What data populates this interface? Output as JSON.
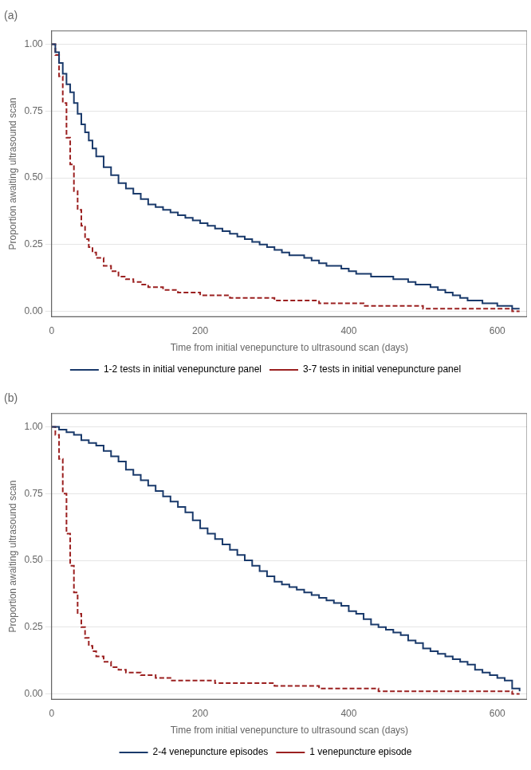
{
  "chart_data": [
    {
      "type": "line",
      "title": "(a)",
      "x_label": "Time from initial venepuncture to ultrasound scan (days)",
      "y_label": "Proportion awaiting ultrasound scan",
      "series": [
        {
          "name": "1-2 tests in initial venepuncture panel",
          "color": "#1a3a6b",
          "line_style": "solid",
          "x": [
            0,
            5,
            10,
            15,
            20,
            25,
            30,
            35,
            40,
            45,
            50,
            55,
            60,
            70,
            80,
            90,
            100,
            110,
            120,
            130,
            140,
            150,
            160,
            170,
            180,
            190,
            200,
            210,
            220,
            230,
            240,
            250,
            260,
            270,
            280,
            290,
            300,
            310,
            320,
            330,
            340,
            350,
            360,
            370,
            380,
            390,
            400,
            410,
            420,
            430,
            440,
            450,
            460,
            470,
            480,
            490,
            500,
            510,
            520,
            530,
            540,
            550,
            560,
            570,
            580,
            590,
            600,
            610,
            620,
            630
          ],
          "values": [
            1.0,
            0.97,
            0.93,
            0.89,
            0.85,
            0.82,
            0.78,
            0.74,
            0.7,
            0.67,
            0.64,
            0.61,
            0.58,
            0.54,
            0.51,
            0.48,
            0.46,
            0.44,
            0.42,
            0.4,
            0.39,
            0.38,
            0.37,
            0.36,
            0.35,
            0.34,
            0.33,
            0.32,
            0.31,
            0.3,
            0.29,
            0.28,
            0.27,
            0.26,
            0.25,
            0.24,
            0.23,
            0.22,
            0.21,
            0.21,
            0.2,
            0.19,
            0.18,
            0.17,
            0.17,
            0.16,
            0.15,
            0.14,
            0.14,
            0.13,
            0.13,
            0.13,
            0.12,
            0.12,
            0.11,
            0.1,
            0.1,
            0.09,
            0.08,
            0.07,
            0.06,
            0.05,
            0.04,
            0.04,
            0.03,
            0.03,
            0.02,
            0.02,
            0.01,
            0.01
          ]
        },
        {
          "name": "3-7 tests in initial venepuncture panel",
          "color": "#9b2020",
          "line_style": "dashed",
          "x": [
            0,
            5,
            10,
            15,
            20,
            25,
            30,
            35,
            40,
            45,
            50,
            55,
            60,
            70,
            80,
            90,
            100,
            110,
            120,
            130,
            140,
            150,
            160,
            170,
            180,
            200,
            220,
            240,
            260,
            280,
            300,
            320,
            340,
            360,
            380,
            400,
            420,
            440,
            460,
            480,
            500,
            520,
            540,
            560,
            580,
            600,
            620,
            630
          ],
          "values": [
            1.0,
            0.96,
            0.88,
            0.78,
            0.65,
            0.55,
            0.45,
            0.38,
            0.32,
            0.27,
            0.24,
            0.22,
            0.2,
            0.17,
            0.15,
            0.13,
            0.12,
            0.11,
            0.1,
            0.09,
            0.09,
            0.08,
            0.08,
            0.07,
            0.07,
            0.06,
            0.06,
            0.05,
            0.05,
            0.05,
            0.04,
            0.04,
            0.04,
            0.03,
            0.03,
            0.03,
            0.02,
            0.02,
            0.02,
            0.02,
            0.01,
            0.01,
            0.01,
            0.01,
            0.01,
            0.01,
            0.0,
            0.0
          ]
        }
      ],
      "xlim": [
        0,
        640
      ],
      "xticks": [
        0,
        200,
        400,
        600
      ],
      "ylim": [
        -0.02,
        1.05
      ],
      "yticks": [
        {
          "value": 0,
          "label": "0.00"
        },
        0.25,
        {
          "value": 0.5,
          "label": "0.50"
        },
        0.75,
        {
          "value": 1,
          "label": "1.00"
        }
      ],
      "grid": "y",
      "legend": "bottom"
    },
    {
      "type": "line",
      "title": "(b)",
      "x_label": "Time from initial venepuncture to ultrasound scan (days)",
      "y_label": "Proportion awaiting ultrasound scan",
      "series": [
        {
          "name": "2-4 venepuncture episodes",
          "color": "#1a3a6b",
          "line_style": "solid",
          "x": [
            0,
            10,
            20,
            30,
            40,
            50,
            60,
            70,
            80,
            90,
            100,
            110,
            120,
            130,
            140,
            150,
            160,
            170,
            180,
            190,
            200,
            210,
            220,
            230,
            240,
            250,
            260,
            270,
            280,
            290,
            300,
            310,
            320,
            330,
            340,
            350,
            360,
            370,
            380,
            390,
            400,
            410,
            420,
            430,
            440,
            450,
            460,
            470,
            480,
            490,
            500,
            510,
            520,
            530,
            540,
            550,
            560,
            570,
            580,
            590,
            600,
            610,
            620,
            630
          ],
          "values": [
            1.0,
            0.99,
            0.98,
            0.97,
            0.95,
            0.94,
            0.93,
            0.91,
            0.89,
            0.87,
            0.84,
            0.82,
            0.8,
            0.78,
            0.76,
            0.74,
            0.72,
            0.7,
            0.68,
            0.65,
            0.62,
            0.6,
            0.58,
            0.56,
            0.54,
            0.52,
            0.5,
            0.48,
            0.46,
            0.44,
            0.42,
            0.41,
            0.4,
            0.39,
            0.38,
            0.37,
            0.36,
            0.35,
            0.34,
            0.33,
            0.31,
            0.3,
            0.28,
            0.26,
            0.25,
            0.24,
            0.23,
            0.22,
            0.2,
            0.19,
            0.17,
            0.16,
            0.15,
            0.14,
            0.13,
            0.12,
            0.11,
            0.09,
            0.08,
            0.07,
            0.06,
            0.05,
            0.02,
            0.01
          ]
        },
        {
          "name": "1 venepuncture episode",
          "color": "#9b2020",
          "line_style": "dashed",
          "x": [
            0,
            5,
            10,
            15,
            20,
            25,
            30,
            35,
            40,
            45,
            50,
            55,
            60,
            70,
            80,
            90,
            100,
            110,
            120,
            130,
            140,
            150,
            160,
            180,
            200,
            220,
            240,
            260,
            280,
            300,
            320,
            340,
            360,
            380,
            400,
            420,
            440,
            460,
            480,
            500,
            520,
            540,
            560,
            580,
            600,
            620,
            630
          ],
          "values": [
            1.0,
            0.97,
            0.88,
            0.75,
            0.6,
            0.48,
            0.38,
            0.3,
            0.25,
            0.21,
            0.18,
            0.16,
            0.14,
            0.12,
            0.1,
            0.09,
            0.08,
            0.08,
            0.07,
            0.07,
            0.06,
            0.06,
            0.05,
            0.05,
            0.05,
            0.04,
            0.04,
            0.04,
            0.04,
            0.03,
            0.03,
            0.03,
            0.02,
            0.02,
            0.02,
            0.02,
            0.01,
            0.01,
            0.01,
            0.01,
            0.01,
            0.01,
            0.01,
            0.01,
            0.01,
            0.0,
            0.0
          ]
        }
      ],
      "xlim": [
        0,
        640
      ],
      "xticks": [
        0,
        200,
        400,
        600
      ],
      "ylim": [
        -0.02,
        1.05
      ],
      "yticks": [
        {
          "value": 0,
          "label": "0.00"
        },
        0.25,
        {
          "value": 0.5,
          "label": "0.50"
        },
        0.75,
        {
          "value": 1,
          "label": "1.00"
        }
      ],
      "grid": "y",
      "legend": "bottom"
    }
  ]
}
